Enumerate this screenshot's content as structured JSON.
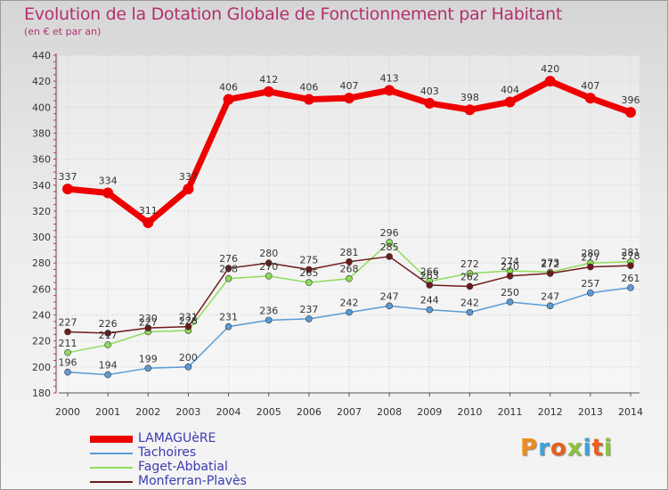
{
  "header": {
    "title": "Evolution de la Dotation Globale de Fonctionnement par Habitant",
    "subtitle": "(en € et par an)"
  },
  "logo": {
    "text": "Proxiti",
    "colors": [
      "#f08c1e",
      "#3fa2dc",
      "#e8601c",
      "#8bc43f",
      "#3fa2dc",
      "#e8601c",
      "#8bc43f"
    ]
  },
  "chart_data": {
    "type": "line",
    "title": "Evolution de la Dotation Globale de Fonctionnement par Habitant",
    "subtitle": "(en € et par an)",
    "xlabel": "",
    "ylabel": "",
    "x": [
      2000,
      2001,
      2002,
      2003,
      2004,
      2005,
      2006,
      2007,
      2008,
      2009,
      2010,
      2011,
      2012,
      2013,
      2014
    ],
    "ylim": [
      180,
      440
    ],
    "yticks": [
      180,
      200,
      220,
      240,
      260,
      280,
      300,
      320,
      340,
      360,
      380,
      400,
      420,
      440
    ],
    "grid": true,
    "legend_position": "bottom-left",
    "series": [
      {
        "name": "LAMAGUèRE",
        "color": "#ee0000",
        "values": [
          337,
          334,
          311,
          337,
          406,
          412,
          406,
          407,
          413,
          403,
          398,
          404,
          420,
          407,
          396
        ]
      },
      {
        "name": "Tachoires",
        "color": "#5b9bd5",
        "values": [
          196,
          194,
          199,
          200,
          231,
          236,
          237,
          242,
          247,
          244,
          242,
          250,
          247,
          257,
          261
        ]
      },
      {
        "name": "Faget-Abbatial",
        "color": "#8fdc5a",
        "values": [
          211,
          217,
          227,
          228,
          268,
          270,
          265,
          268,
          296,
          266,
          272,
          274,
          273,
          280,
          281
        ]
      },
      {
        "name": "Monferran-Plavès",
        "color": "#6e1b1b",
        "values": [
          227,
          226,
          230,
          231,
          276,
          280,
          275,
          281,
          285,
          263,
          262,
          270,
          272,
          277,
          278
        ]
      }
    ]
  }
}
